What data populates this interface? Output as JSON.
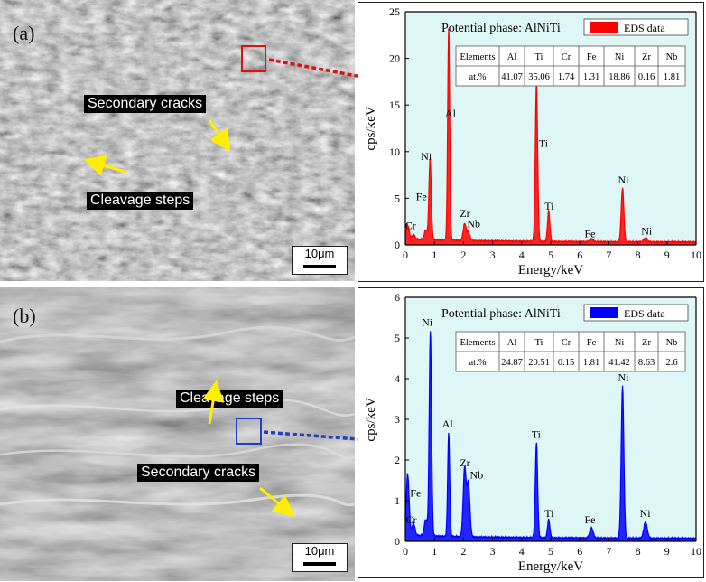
{
  "panels": [
    {
      "label": "(a)",
      "callouts": [
        "Secondary cracks",
        "Cleavage steps"
      ],
      "scale_bar": "10μm",
      "box_color": "#e01010",
      "chart_data": {
        "type": "bar",
        "title": "Potential phase: AlNiTi",
        "legend": "EDS data",
        "legend_position": "top-right",
        "color": "#ff0000",
        "xlabel": "Energy/keV",
        "ylabel": "cps/keV",
        "xlim": [
          0,
          10
        ],
        "ylim": [
          0,
          25
        ],
        "xticks": [
          0,
          1,
          2,
          3,
          4,
          5,
          6,
          7,
          8,
          9,
          10
        ],
        "yticks": [
          0,
          5,
          10,
          15,
          20,
          25
        ],
        "peaks": [
          {
            "x": 0.08,
            "y": 1.5,
            "w": 0.05
          },
          {
            "x": 0.28,
            "y": 0.5,
            "w": 0.05
          },
          {
            "x": 0.85,
            "y": 8.7,
            "w": 0.04
          },
          {
            "x": 0.7,
            "y": 1.0,
            "w": 0.05
          },
          {
            "x": 1.49,
            "y": 22.8,
            "w": 0.035
          },
          {
            "x": 2.04,
            "y": 1.8,
            "w": 0.05
          },
          {
            "x": 2.17,
            "y": 0.9,
            "w": 0.05
          },
          {
            "x": 4.51,
            "y": 17.0,
            "w": 0.04
          },
          {
            "x": 4.93,
            "y": 3.3,
            "w": 0.04
          },
          {
            "x": 6.4,
            "y": 0.3,
            "w": 0.06
          },
          {
            "x": 7.47,
            "y": 5.8,
            "w": 0.045
          },
          {
            "x": 8.26,
            "y": 0.4,
            "w": 0.06
          }
        ],
        "peak_labels": [
          {
            "text": "Cr",
            "x": 0.18,
            "y": 1.7
          },
          {
            "text": "Fe",
            "x": 0.55,
            "y": 4.8
          },
          {
            "text": "Ni",
            "x": 0.72,
            "y": 9.1
          },
          {
            "text": "Al",
            "x": 1.55,
            "y": 13.7
          },
          {
            "text": "Zr",
            "x": 2.05,
            "y": 3.0
          },
          {
            "text": "Nb",
            "x": 2.35,
            "y": 1.9
          },
          {
            "text": "Ti",
            "x": 4.75,
            "y": 10.5
          },
          {
            "text": "Ti",
            "x": 4.95,
            "y": 3.8
          },
          {
            "text": "Fe",
            "x": 6.35,
            "y": 0.8
          },
          {
            "text": "Ni",
            "x": 7.5,
            "y": 6.6
          },
          {
            "text": "Ni",
            "x": 8.3,
            "y": 1.1
          }
        ],
        "table": {
          "headers": [
            "Elements",
            "Al",
            "Ti",
            "Cr",
            "Fe",
            "Ni",
            "Zr",
            "Nb"
          ],
          "row": [
            "at.%",
            "41.07",
            "35.06",
            "1.74",
            "1.31",
            "18.86",
            "0.16",
            "1.81"
          ]
        }
      }
    },
    {
      "label": "(b)",
      "callouts": [
        "Cleavage steps",
        "Secondary cracks"
      ],
      "scale_bar": "10μm",
      "box_color": "#2040c0",
      "chart_data": {
        "type": "bar",
        "title": "Potential phase: AlNiTi",
        "legend": "EDS data",
        "legend_position": "top-right",
        "color": "#0000ff",
        "xlabel": "Energy/keV",
        "ylabel": "cps/keV",
        "xlim": [
          0,
          10
        ],
        "ylim": [
          0,
          6
        ],
        "xticks": [
          0,
          1,
          2,
          3,
          4,
          5,
          6,
          7,
          8,
          9,
          10
        ],
        "yticks": [
          0,
          1,
          2,
          3,
          4,
          5,
          6
        ],
        "peaks": [
          {
            "x": 0.08,
            "y": 1.5,
            "w": 0.05
          },
          {
            "x": 0.28,
            "y": 0.3,
            "w": 0.05
          },
          {
            "x": 0.7,
            "y": 0.4,
            "w": 0.05
          },
          {
            "x": 0.86,
            "y": 5.05,
            "w": 0.04
          },
          {
            "x": 1.49,
            "y": 2.55,
            "w": 0.035
          },
          {
            "x": 2.04,
            "y": 1.7,
            "w": 0.05
          },
          {
            "x": 2.17,
            "y": 1.3,
            "w": 0.05
          },
          {
            "x": 4.51,
            "y": 2.35,
            "w": 0.04
          },
          {
            "x": 4.93,
            "y": 0.45,
            "w": 0.04
          },
          {
            "x": 6.4,
            "y": 0.25,
            "w": 0.06
          },
          {
            "x": 7.47,
            "y": 3.75,
            "w": 0.045
          },
          {
            "x": 8.26,
            "y": 0.4,
            "w": 0.06
          }
        ],
        "peak_labels": [
          {
            "text": "Cr",
            "x": 0.2,
            "y": 0.45
          },
          {
            "text": "Fe",
            "x": 0.35,
            "y": 1.1
          },
          {
            "text": "Ni",
            "x": 0.75,
            "y": 5.3
          },
          {
            "text": "Al",
            "x": 1.45,
            "y": 2.8
          },
          {
            "text": "Zr",
            "x": 2.05,
            "y": 1.85
          },
          {
            "text": "Nb",
            "x": 2.45,
            "y": 1.55
          },
          {
            "text": "Ti",
            "x": 4.5,
            "y": 2.55
          },
          {
            "text": "Ti",
            "x": 4.95,
            "y": 0.6
          },
          {
            "text": "Fe",
            "x": 6.35,
            "y": 0.45
          },
          {
            "text": "Ni",
            "x": 7.5,
            "y": 3.95
          },
          {
            "text": "Ni",
            "x": 8.25,
            "y": 0.6
          }
        ],
        "table": {
          "headers": [
            "Elements",
            "Al",
            "Ti",
            "Cr",
            "Fe",
            "Ni",
            "Zr",
            "Nb"
          ],
          "row": [
            "at.%",
            "24.87",
            "20.51",
            "0.15",
            "1.81",
            "41.42",
            "8.63",
            "2.6"
          ]
        }
      }
    }
  ]
}
